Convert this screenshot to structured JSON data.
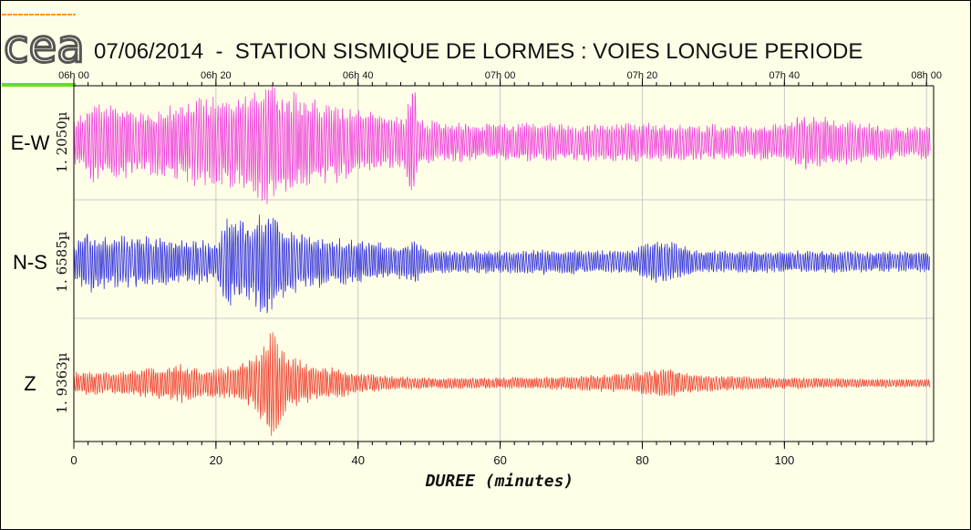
{
  "colors": {
    "background": "#ffffe8",
    "grid": "#c8c8c8",
    "logo": "#555555",
    "logo_top_line": "#ff9900",
    "logo_bottom_line": "#66dd22"
  },
  "logo": {
    "text": "cea"
  },
  "chart_data": {
    "type": "line",
    "title": "07/06/2014  -  STATION SISMIQUE DE LORMES : VOIES LONGUE PERIODE",
    "xlabel": "DUREE (minutes)",
    "xlim": [
      0,
      121
    ],
    "x_ticks": [
      0,
      20,
      40,
      60,
      80,
      100
    ],
    "x_minor_step": 2,
    "time_ticks": [
      {
        "x": 0,
        "label": "06h 00"
      },
      {
        "x": 20,
        "label": "06h 20"
      },
      {
        "x": 40,
        "label": "06h 40"
      },
      {
        "x": 60,
        "label": "07h 00"
      },
      {
        "x": 80,
        "label": "07h 20"
      },
      {
        "x": 100,
        "label": "07h 40"
      },
      {
        "x": 120,
        "label": "08h 00"
      }
    ],
    "grid": true,
    "series": [
      {
        "name": "E-W",
        "amplitude": "1. 2050µ",
        "color": "#ee44dd",
        "envelope": [
          [
            0,
            0.35
          ],
          [
            3,
            0.65
          ],
          [
            5,
            0.6
          ],
          [
            10,
            0.5
          ],
          [
            15,
            0.6
          ],
          [
            18,
            0.75
          ],
          [
            22,
            0.7
          ],
          [
            25,
            0.85
          ],
          [
            27.5,
            1.0
          ],
          [
            30,
            0.85
          ],
          [
            33,
            0.7
          ],
          [
            36,
            0.65
          ],
          [
            40,
            0.55
          ],
          [
            44,
            0.45
          ],
          [
            46,
            0.4
          ],
          [
            48,
            0.95
          ],
          [
            48.5,
            0.35
          ],
          [
            55,
            0.3
          ],
          [
            60,
            0.3
          ],
          [
            70,
            0.3
          ],
          [
            80,
            0.3
          ],
          [
            90,
            0.28
          ],
          [
            100,
            0.3
          ],
          [
            102,
            0.45
          ],
          [
            106,
            0.4
          ],
          [
            112,
            0.3
          ],
          [
            121,
            0.25
          ]
        ]
      },
      {
        "name": "N-S",
        "amplitude": "1. 6585µ",
        "color": "#3333dd",
        "envelope": [
          [
            0,
            0.3
          ],
          [
            2,
            0.55
          ],
          [
            5,
            0.45
          ],
          [
            10,
            0.45
          ],
          [
            15,
            0.4
          ],
          [
            18,
            0.4
          ],
          [
            20,
            0.35
          ],
          [
            21.5,
            0.8
          ],
          [
            24,
            0.7
          ],
          [
            26,
            0.85
          ],
          [
            27,
            1.0
          ],
          [
            28,
            0.85
          ],
          [
            30,
            0.6
          ],
          [
            35,
            0.45
          ],
          [
            40,
            0.4
          ],
          [
            45,
            0.3
          ],
          [
            48,
            0.4
          ],
          [
            50,
            0.2
          ],
          [
            60,
            0.2
          ],
          [
            70,
            0.22
          ],
          [
            78,
            0.2
          ],
          [
            82,
            0.4
          ],
          [
            84,
            0.35
          ],
          [
            88,
            0.2
          ],
          [
            100,
            0.2
          ],
          [
            110,
            0.2
          ],
          [
            121,
            0.18
          ]
        ]
      },
      {
        "name": "Z",
        "amplitude": "1. 9363µ",
        "color": "#ee4433",
        "envelope": [
          [
            0,
            0.2
          ],
          [
            5,
            0.2
          ],
          [
            10,
            0.25
          ],
          [
            15,
            0.35
          ],
          [
            18,
            0.25
          ],
          [
            22,
            0.3
          ],
          [
            25,
            0.45
          ],
          [
            27,
            0.75
          ],
          [
            28,
            1.0
          ],
          [
            30,
            0.5
          ],
          [
            33,
            0.35
          ],
          [
            36,
            0.3
          ],
          [
            40,
            0.18
          ],
          [
            45,
            0.12
          ],
          [
            50,
            0.1
          ],
          [
            60,
            0.1
          ],
          [
            70,
            0.12
          ],
          [
            78,
            0.18
          ],
          [
            84,
            0.25
          ],
          [
            88,
            0.15
          ],
          [
            95,
            0.12
          ],
          [
            100,
            0.1
          ],
          [
            110,
            0.08
          ],
          [
            121,
            0.07
          ]
        ]
      }
    ]
  }
}
